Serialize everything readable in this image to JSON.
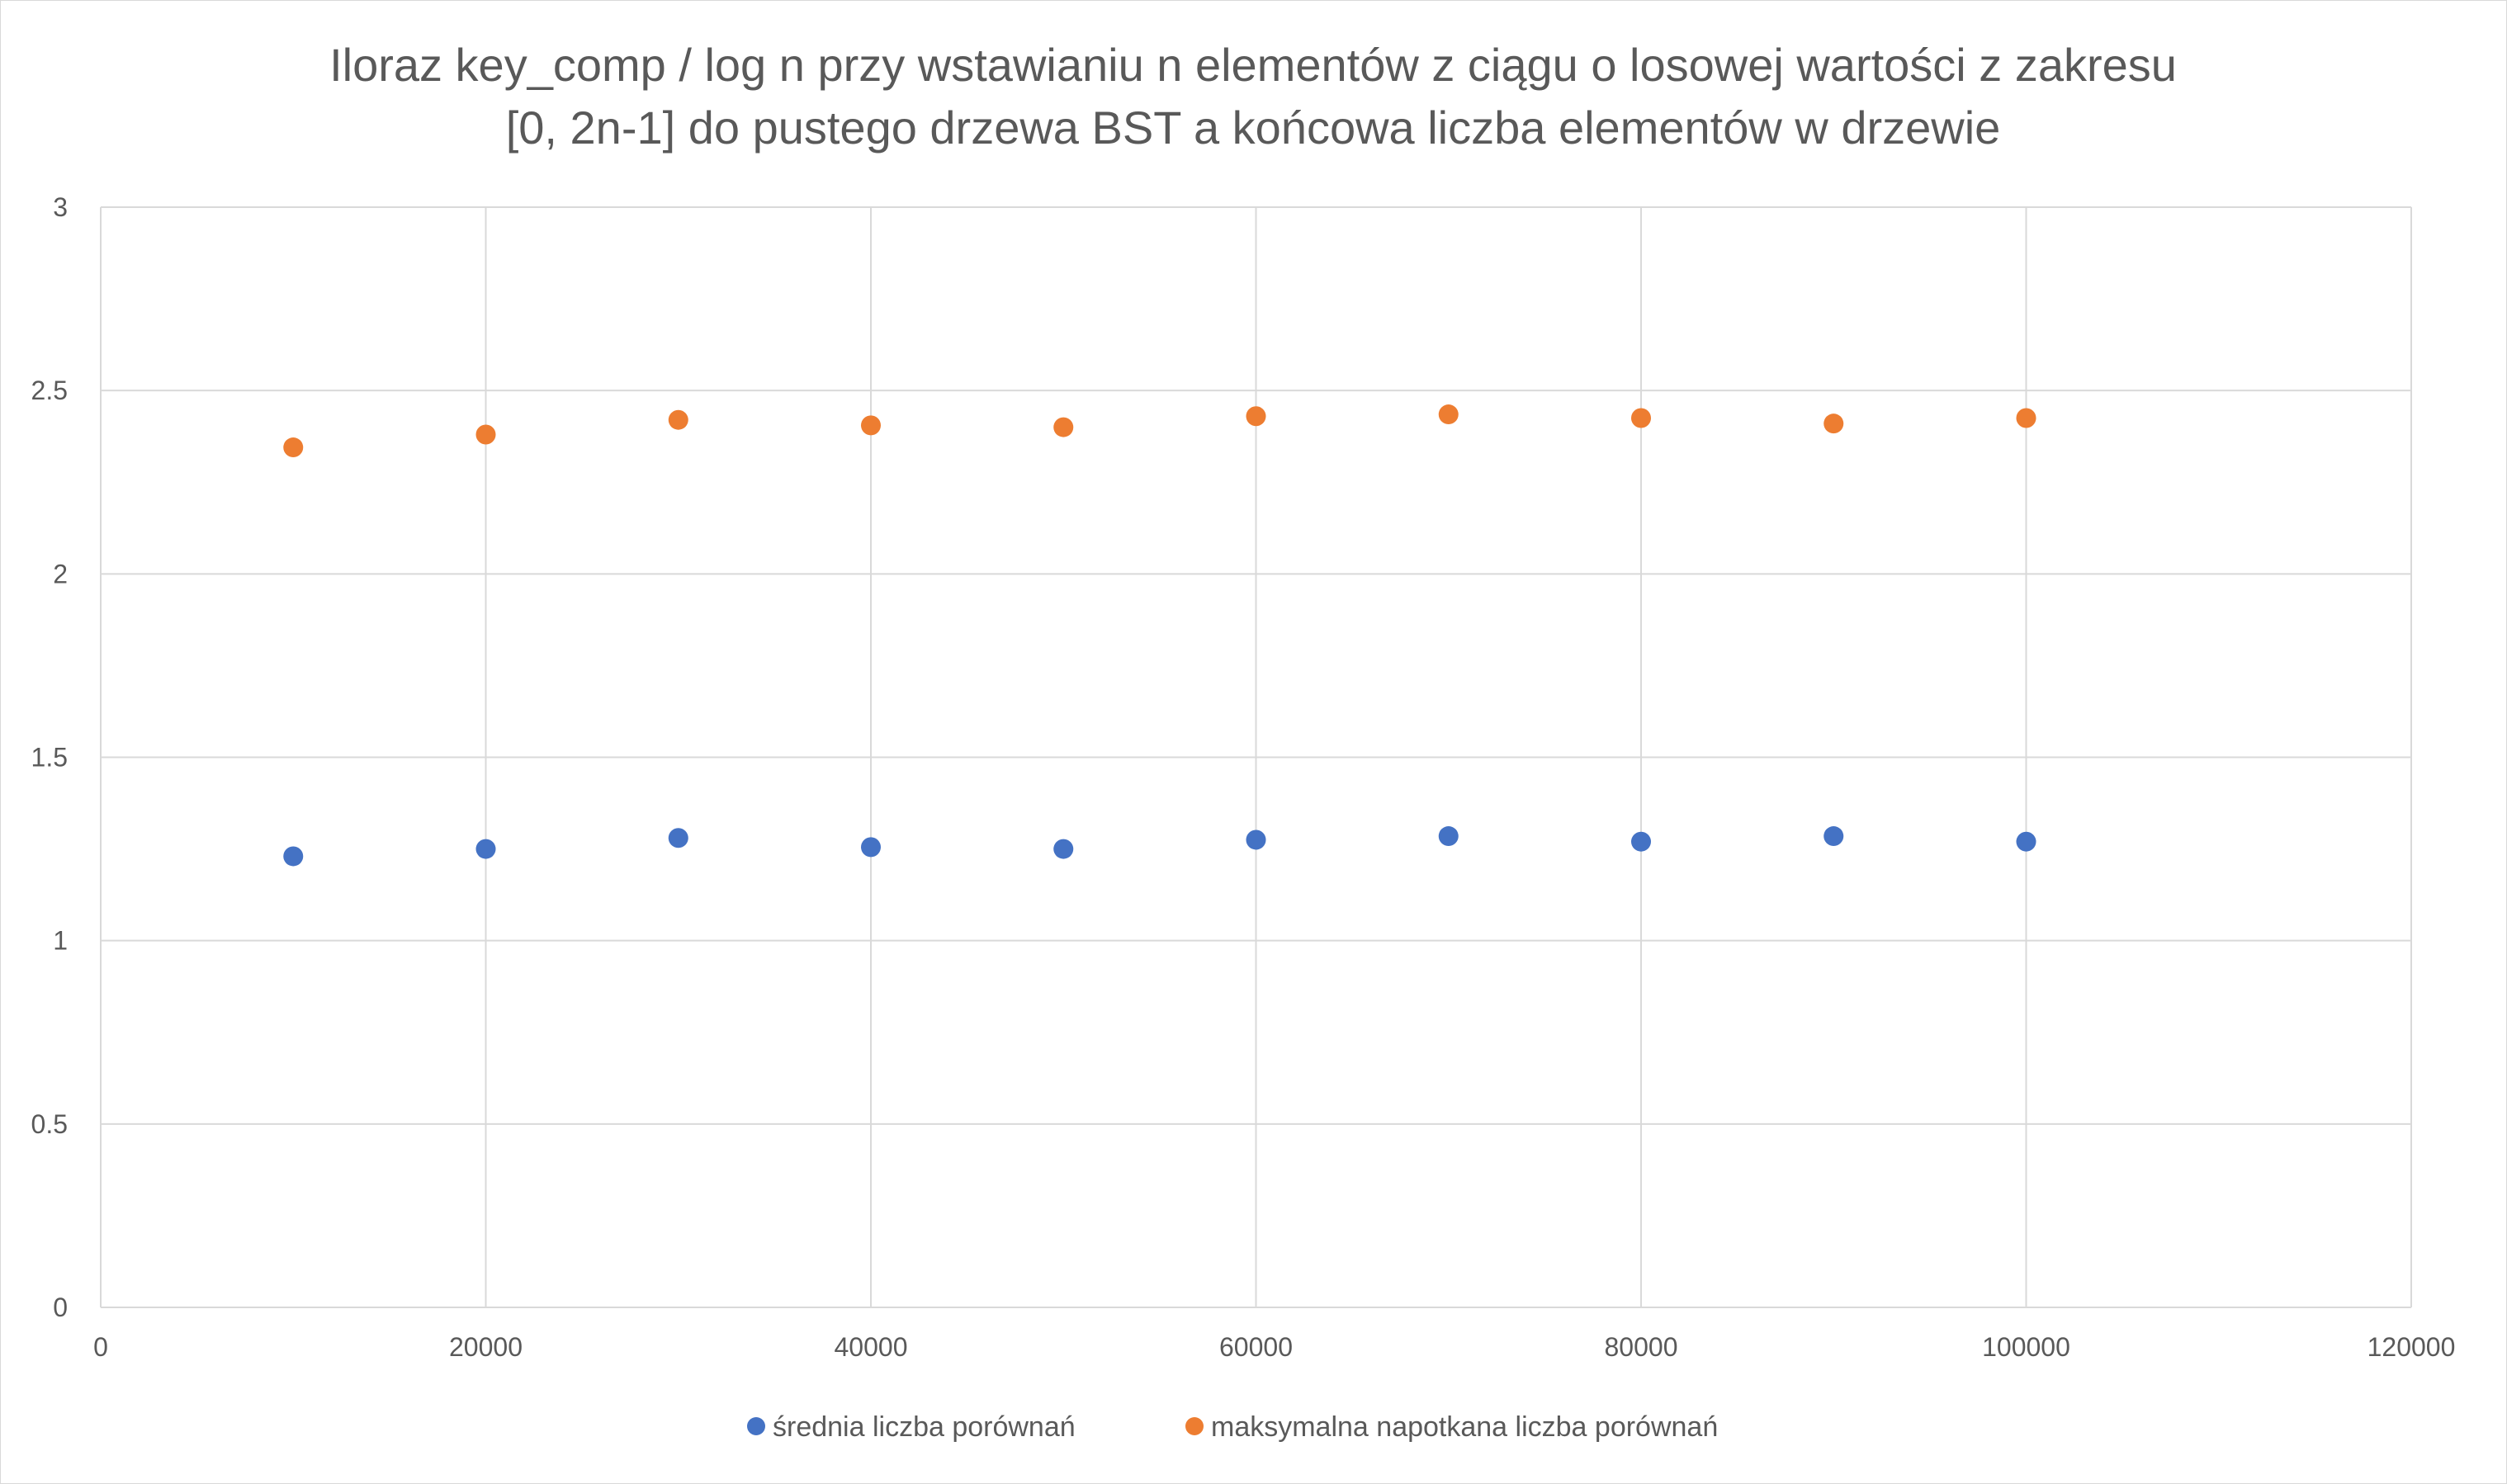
{
  "chart_data": {
    "type": "scatter",
    "title": "Iloraz key_comp / log n przy wstawianiu n elementów z ciągu o losowej wartości z zakresu [0, 2n-1] do pustego drzewa BST a końcowa liczba elementów w drzewie",
    "title_lines": [
      "Iloraz key_comp / log n przy wstawianiu n elementów z ciągu o losowej wartości z zakresu",
      "[0, 2n-1] do pustego drzewa BST a końcowa liczba elementów w drzewie"
    ],
    "xlabel": "",
    "ylabel": "",
    "xlim": [
      0,
      120000
    ],
    "ylim": [
      0,
      3
    ],
    "x_ticks": [
      0,
      20000,
      40000,
      60000,
      80000,
      100000,
      120000
    ],
    "y_ticks": [
      0,
      0.5,
      1,
      1.5,
      2,
      2.5,
      3
    ],
    "x_tick_labels": [
      "0",
      "20000",
      "40000",
      "60000",
      "80000",
      "100000",
      "120000"
    ],
    "y_tick_labels": [
      "0",
      "0.5",
      "1",
      "1.5",
      "2",
      "2.5",
      "3"
    ],
    "grid": true,
    "legend_position": "bottom",
    "x": [
      10000,
      20000,
      30000,
      40000,
      50000,
      60000,
      70000,
      80000,
      90000,
      100000
    ],
    "series": [
      {
        "name": "średnia liczba porównań",
        "color": "#4472C4",
        "values": [
          1.23,
          1.25,
          1.28,
          1.255,
          1.25,
          1.275,
          1.285,
          1.27,
          1.285,
          1.27
        ]
      },
      {
        "name": "maksymalna napotkana liczba porównań",
        "color": "#ED7D31",
        "values": [
          2.345,
          2.38,
          2.42,
          2.405,
          2.4,
          2.43,
          2.435,
          2.425,
          2.41,
          2.425
        ]
      }
    ]
  }
}
